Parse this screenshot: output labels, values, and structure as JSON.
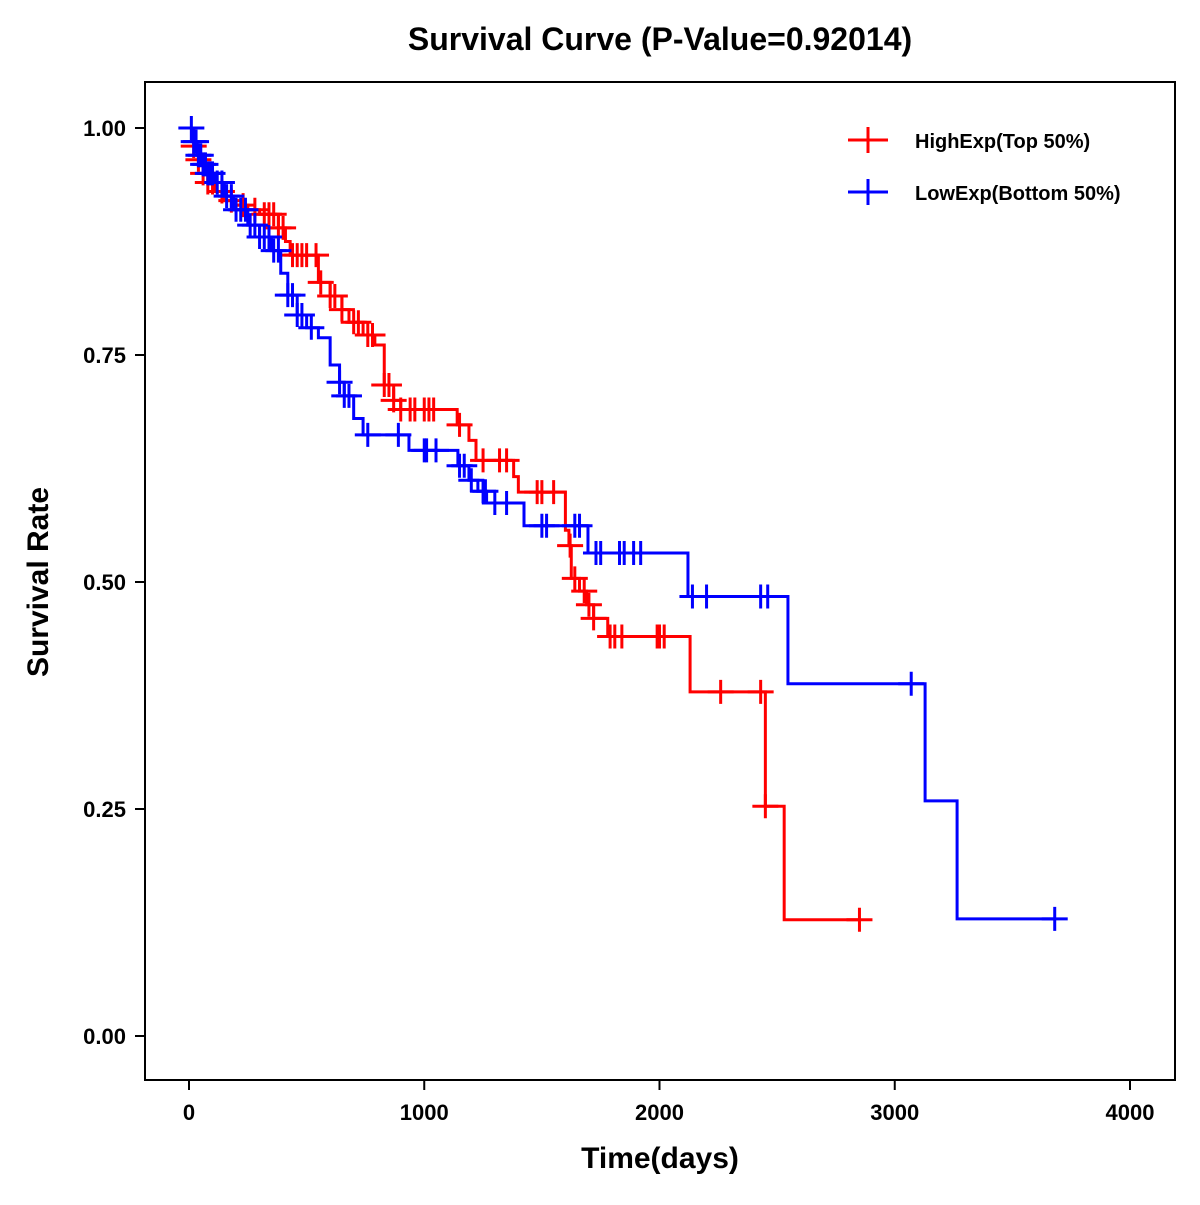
{
  "chart_data": {
    "type": "line",
    "title": "Survival Curve (P-Value=0.92014)",
    "xlabel": "Time(days)",
    "ylabel": "Survival Rate",
    "xlim": [
      -200,
      4200
    ],
    "ylim": [
      -0.05,
      1.05
    ],
    "xticks": [
      0,
      1000,
      2000,
      3000,
      4000
    ],
    "xtick_labels": [
      "0",
      "1000",
      "2000",
      "3000",
      "4000"
    ],
    "yticks": [
      0,
      0.25,
      0.5,
      0.75,
      1.0
    ],
    "ytick_labels": [
      "0.00",
      "0.25",
      "0.50",
      "0.75",
      "1.00"
    ],
    "grid": false,
    "legend_position": "top-right",
    "series": [
      {
        "name": "HighExp(Top 50%)",
        "color": "#FF0000",
        "steps": [
          [
            0,
            1.0
          ],
          [
            20,
            0.98
          ],
          [
            40,
            0.965
          ],
          [
            60,
            0.95
          ],
          [
            80,
            0.94
          ],
          [
            110,
            0.93
          ],
          [
            150,
            0.92
          ],
          [
            200,
            0.915
          ],
          [
            250,
            0.91
          ],
          [
            300,
            0.905
          ],
          [
            380,
            0.89
          ],
          [
            410,
            0.875
          ],
          [
            430,
            0.86
          ],
          [
            550,
            0.83
          ],
          [
            600,
            0.815
          ],
          [
            650,
            0.8
          ],
          [
            680,
            0.786
          ],
          [
            740,
            0.772
          ],
          [
            790,
            0.761
          ],
          [
            830,
            0.717
          ],
          [
            870,
            0.7
          ],
          [
            900,
            0.69
          ],
          [
            1140,
            0.673
          ],
          [
            1190,
            0.656
          ],
          [
            1220,
            0.634
          ],
          [
            1380,
            0.616
          ],
          [
            1400,
            0.599
          ],
          [
            1600,
            0.557
          ],
          [
            1615,
            0.54
          ],
          [
            1625,
            0.504
          ],
          [
            1660,
            0.49
          ],
          [
            1690,
            0.475
          ],
          [
            1720,
            0.46
          ],
          [
            1780,
            0.44
          ],
          [
            2130,
            0.379
          ],
          [
            2450,
            0.253
          ],
          [
            2530,
            0.128
          ],
          [
            2850,
            0.128
          ]
        ],
        "censored": [
          20,
          40,
          60,
          80,
          100,
          140,
          180,
          230,
          280,
          320,
          340,
          360,
          380,
          400,
          440,
          460,
          480,
          500,
          540,
          560,
          600,
          620,
          650,
          700,
          720,
          760,
          780,
          830,
          850,
          870,
          900,
          940,
          960,
          1000,
          1020,
          1040,
          1150,
          1250,
          1320,
          1350,
          1480,
          1500,
          1550,
          1620,
          1640,
          1680,
          1700,
          1720,
          1790,
          1810,
          1840,
          1990,
          2000,
          2020,
          2260,
          2430,
          2450,
          2850
        ]
      },
      {
        "name": "LowExp(Bottom 50%)",
        "color": "#0000FF",
        "steps": [
          [
            0,
            1.0
          ],
          [
            15,
            0.985
          ],
          [
            35,
            0.97
          ],
          [
            55,
            0.96
          ],
          [
            80,
            0.95
          ],
          [
            110,
            0.94
          ],
          [
            150,
            0.925
          ],
          [
            190,
            0.91
          ],
          [
            250,
            0.893
          ],
          [
            300,
            0.88
          ],
          [
            350,
            0.865
          ],
          [
            390,
            0.84
          ],
          [
            420,
            0.816
          ],
          [
            460,
            0.794
          ],
          [
            500,
            0.78
          ],
          [
            550,
            0.769
          ],
          [
            600,
            0.739
          ],
          [
            640,
            0.72
          ],
          [
            660,
            0.705
          ],
          [
            700,
            0.68
          ],
          [
            740,
            0.662
          ],
          [
            935,
            0.645
          ],
          [
            1143,
            0.628
          ],
          [
            1190,
            0.612
          ],
          [
            1228,
            0.6
          ],
          [
            1265,
            0.587
          ],
          [
            1424,
            0.562
          ],
          [
            1696,
            0.532
          ],
          [
            2121,
            0.484
          ],
          [
            2546,
            0.388
          ],
          [
            3129,
            0.259
          ],
          [
            3265,
            0.129
          ],
          [
            3680,
            0.129
          ]
        ],
        "censored": [
          10,
          20,
          30,
          40,
          50,
          60,
          70,
          80,
          90,
          100,
          120,
          140,
          160,
          180,
          200,
          220,
          240,
          260,
          280,
          300,
          320,
          340,
          360,
          380,
          420,
          440,
          460,
          480,
          520,
          640,
          660,
          680,
          760,
          890,
          1000,
          1010,
          1050,
          1150,
          1170,
          1200,
          1250,
          1260,
          1300,
          1350,
          1500,
          1520,
          1640,
          1660,
          1730,
          1750,
          1830,
          1850,
          1890,
          1920,
          2140,
          2200,
          2430,
          2460,
          3070,
          3680
        ]
      }
    ]
  }
}
